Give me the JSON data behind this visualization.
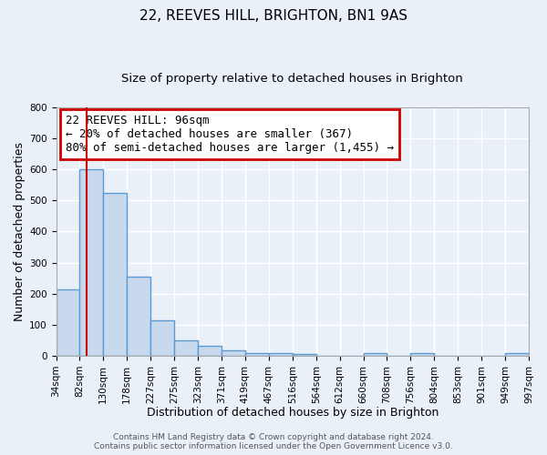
{
  "title": "22, REEVES HILL, BRIGHTON, BN1 9AS",
  "subtitle": "Size of property relative to detached houses in Brighton",
  "xlabel": "Distribution of detached houses by size in Brighton",
  "ylabel": "Number of detached properties",
  "bar_edges": [
    34,
    82,
    130,
    178,
    227,
    275,
    323,
    371,
    419,
    467,
    516,
    564,
    612,
    660,
    708,
    756,
    804,
    853,
    901,
    949,
    997
  ],
  "bar_heights": [
    215,
    600,
    525,
    255,
    115,
    50,
    33,
    18,
    10,
    8,
    5,
    0,
    0,
    8,
    0,
    8,
    0,
    0,
    0,
    8
  ],
  "tick_labels": [
    "34sqm",
    "82sqm",
    "130sqm",
    "178sqm",
    "227sqm",
    "275sqm",
    "323sqm",
    "371sqm",
    "419sqm",
    "467sqm",
    "516sqm",
    "564sqm",
    "612sqm",
    "660sqm",
    "708sqm",
    "756sqm",
    "804sqm",
    "853sqm",
    "901sqm",
    "949sqm",
    "997sqm"
  ],
  "bar_facecolor": "#c9d9ed",
  "bar_edgecolor": "#5b9bd5",
  "bar_linewidth": 1.0,
  "vline_x": 96,
  "vline_color": "#cc0000",
  "vline_linewidth": 1.5,
  "ylim": [
    0,
    800
  ],
  "yticks": [
    0,
    100,
    200,
    300,
    400,
    500,
    600,
    700,
    800
  ],
  "annotation_line1": "22 REEVES HILL: 96sqm",
  "annotation_line2": "← 20% of detached houses are smaller (367)",
  "annotation_line3": "80% of semi-detached houses are larger (1,455) →",
  "annotation_box_edgecolor": "#cc0000",
  "annotation_box_facecolor": "#ffffff",
  "footer_line1": "Contains HM Land Registry data © Crown copyright and database right 2024.",
  "footer_line2": "Contains public sector information licensed under the Open Government Licence v3.0.",
  "background_color": "#eaf0f8",
  "grid_color": "#ffffff",
  "title_fontsize": 11,
  "subtitle_fontsize": 9.5,
  "xlabel_fontsize": 9,
  "ylabel_fontsize": 9,
  "tick_fontsize": 7.5,
  "annotation_fontsize": 9,
  "footer_fontsize": 6.5
}
